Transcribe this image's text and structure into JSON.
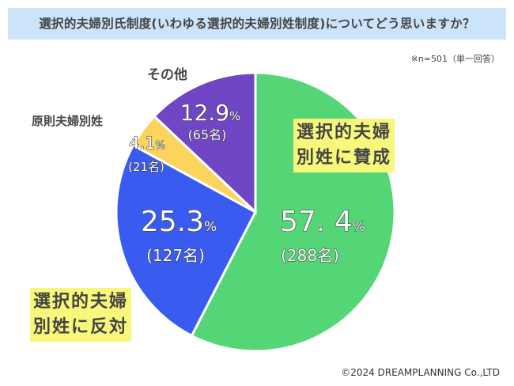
{
  "header": {
    "title": "選択的夫婦別氏制度(いわゆる選択的夫婦別姓制度)についてどう思いますか？"
  },
  "note": "※n=501（単一回答）",
  "copyright": "©2024 DREAMPLANNING Co.,LTD",
  "chart_data": {
    "type": "pie",
    "title": "選択的夫婦別氏制度(いわゆる選択的夫婦別姓制度)についてどう思いますか？",
    "start": "12 o'clock, clockwise",
    "slices": [
      {
        "label": "選択的夫婦別姓に賛成",
        "label_lines": [
          "選択的夫婦",
          "別姓に賛成"
        ],
        "value": 57.4,
        "pct_text": "57. 4",
        "count_text": "(288名)",
        "color": "#55D676"
      },
      {
        "label": "選択的夫婦別姓に反対",
        "label_lines": [
          "選択的夫婦",
          "別姓に反対"
        ],
        "value": 25.3,
        "pct_text": "25.3",
        "count_text": "(127名)",
        "color": "#3A5BEF"
      },
      {
        "label": "原則夫婦別姓",
        "value": 4.1,
        "pct_text": "4.1",
        "count_text": "(21名)",
        "color": "#FAD45C"
      },
      {
        "label": "その他",
        "value": 12.9,
        "pct_text": "12.9",
        "count_text": "(65名)",
        "color": "#7046C4"
      }
    ],
    "unit": "%"
  }
}
